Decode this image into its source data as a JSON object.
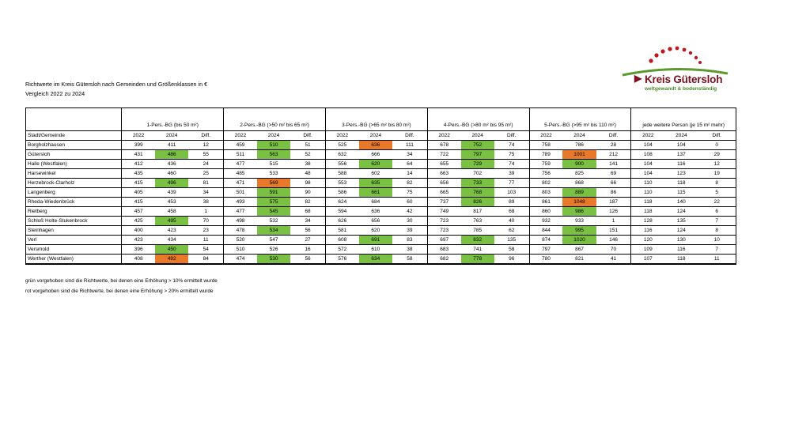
{
  "doc": {
    "title_line1": "Richtwerte im Kreis Gütersloh nach Gemeinden und Größenklassen in €",
    "title_line2": "Vergleich 2022 zu 2024"
  },
  "logo": {
    "name": "Kreis Gütersloh",
    "tagline": "weltgewandt & bodenständig",
    "colors": {
      "dots": "#c0151f",
      "arc": "#5a9a2e",
      "text": "#7a1020"
    }
  },
  "table": {
    "groups": [
      "1-Pers.-BG (bis 50 m²)",
      "2-Pers.-BG (>50 m² bis 65 m²)",
      "3-Pers.-BG (>65 m² bis 80 m²)",
      "4-Pers.-BG (>80 m² bis 95 m²)",
      "5-Pers.-BG (>95 m² bis 110 m²)",
      "jede weitere Person (je 15 m² mehr)"
    ],
    "header": {
      "city": "Stadt/Gemeinde",
      "y1": "2022",
      "y2": "2024",
      "diff": "Diff."
    },
    "highlight_colors": {
      "green": "#7ac043",
      "red": "#e8782a"
    },
    "rows": [
      {
        "name": "Borgholzhausen",
        "cells": [
          {
            "v": "399"
          },
          {
            "v": "411"
          },
          {
            "v": "12"
          },
          {
            "v": "459"
          },
          {
            "v": "510",
            "h": "g"
          },
          {
            "v": "51"
          },
          {
            "v": "525"
          },
          {
            "v": "636",
            "h": "r"
          },
          {
            "v": "111"
          },
          {
            "v": "678"
          },
          {
            "v": "752",
            "h": "g"
          },
          {
            "v": "74"
          },
          {
            "v": "758"
          },
          {
            "v": "786"
          },
          {
            "v": "28"
          },
          {
            "v": "104"
          },
          {
            "v": "104"
          },
          {
            "v": "0"
          }
        ]
      },
      {
        "name": "Gütersloh",
        "cells": [
          {
            "v": "431"
          },
          {
            "v": "486",
            "h": "g"
          },
          {
            "v": "55"
          },
          {
            "v": "511"
          },
          {
            "v": "563",
            "h": "g"
          },
          {
            "v": "52"
          },
          {
            "v": "632"
          },
          {
            "v": "666"
          },
          {
            "v": "34"
          },
          {
            "v": "722"
          },
          {
            "v": "797",
            "h": "g"
          },
          {
            "v": "75"
          },
          {
            "v": "789"
          },
          {
            "v": "1001",
            "h": "r"
          },
          {
            "v": "212"
          },
          {
            "v": "108"
          },
          {
            "v": "137"
          },
          {
            "v": "29"
          }
        ]
      },
      {
        "name": "Halle (Westfalen)",
        "cells": [
          {
            "v": "412"
          },
          {
            "v": "436"
          },
          {
            "v": "24"
          },
          {
            "v": "477"
          },
          {
            "v": "515"
          },
          {
            "v": "38"
          },
          {
            "v": "556"
          },
          {
            "v": "620",
            "h": "g"
          },
          {
            "v": "64"
          },
          {
            "v": "655"
          },
          {
            "v": "729",
            "h": "g"
          },
          {
            "v": "74"
          },
          {
            "v": "759"
          },
          {
            "v": "900",
            "h": "g"
          },
          {
            "v": "141"
          },
          {
            "v": "104"
          },
          {
            "v": "116"
          },
          {
            "v": "12"
          }
        ]
      },
      {
        "name": "Harsewinkel",
        "cells": [
          {
            "v": "435"
          },
          {
            "v": "460"
          },
          {
            "v": "25"
          },
          {
            "v": "485"
          },
          {
            "v": "533"
          },
          {
            "v": "48"
          },
          {
            "v": "588"
          },
          {
            "v": "602"
          },
          {
            "v": "14"
          },
          {
            "v": "663"
          },
          {
            "v": "702"
          },
          {
            "v": "39"
          },
          {
            "v": "756"
          },
          {
            "v": "825"
          },
          {
            "v": "69"
          },
          {
            "v": "104"
          },
          {
            "v": "123"
          },
          {
            "v": "19"
          }
        ]
      },
      {
        "name": "Herzebrock-Clarholz",
        "cells": [
          {
            "v": "415"
          },
          {
            "v": "496",
            "h": "g"
          },
          {
            "v": "81"
          },
          {
            "v": "471"
          },
          {
            "v": "569",
            "h": "r"
          },
          {
            "v": "98"
          },
          {
            "v": "553"
          },
          {
            "v": "635",
            "h": "g"
          },
          {
            "v": "82"
          },
          {
            "v": "656"
          },
          {
            "v": "733",
            "h": "g"
          },
          {
            "v": "77"
          },
          {
            "v": "802"
          },
          {
            "v": "868"
          },
          {
            "v": "66"
          },
          {
            "v": "110"
          },
          {
            "v": "118"
          },
          {
            "v": "8"
          }
        ]
      },
      {
        "name": "Langenberg",
        "cells": [
          {
            "v": "405"
          },
          {
            "v": "439"
          },
          {
            "v": "34"
          },
          {
            "v": "501"
          },
          {
            "v": "591",
            "h": "g"
          },
          {
            "v": "90"
          },
          {
            "v": "586"
          },
          {
            "v": "661",
            "h": "g"
          },
          {
            "v": "75"
          },
          {
            "v": "665"
          },
          {
            "v": "768",
            "h": "g"
          },
          {
            "v": "103"
          },
          {
            "v": "803"
          },
          {
            "v": "889",
            "h": "g"
          },
          {
            "v": "86"
          },
          {
            "v": "110"
          },
          {
            "v": "115"
          },
          {
            "v": "5"
          }
        ]
      },
      {
        "name": "Rheda-Wiedenbrück",
        "cells": [
          {
            "v": "415"
          },
          {
            "v": "453"
          },
          {
            "v": "38"
          },
          {
            "v": "493"
          },
          {
            "v": "575",
            "h": "g"
          },
          {
            "v": "82"
          },
          {
            "v": "624"
          },
          {
            "v": "684"
          },
          {
            "v": "60"
          },
          {
            "v": "737"
          },
          {
            "v": "826",
            "h": "g"
          },
          {
            "v": "89"
          },
          {
            "v": "861"
          },
          {
            "v": "1048",
            "h": "r"
          },
          {
            "v": "187"
          },
          {
            "v": "118"
          },
          {
            "v": "140"
          },
          {
            "v": "22"
          }
        ]
      },
      {
        "name": "Rietberg",
        "cells": [
          {
            "v": "457"
          },
          {
            "v": "458"
          },
          {
            "v": "1"
          },
          {
            "v": "477"
          },
          {
            "v": "545",
            "h": "g"
          },
          {
            "v": "68"
          },
          {
            "v": "594"
          },
          {
            "v": "636"
          },
          {
            "v": "42"
          },
          {
            "v": "749"
          },
          {
            "v": "817"
          },
          {
            "v": "68"
          },
          {
            "v": "860"
          },
          {
            "v": "986",
            "h": "g"
          },
          {
            "v": "126"
          },
          {
            "v": "118"
          },
          {
            "v": "124"
          },
          {
            "v": "6"
          }
        ]
      },
      {
        "name": "Schloß Holte-Stukenbrock",
        "cells": [
          {
            "v": "425"
          },
          {
            "v": "495",
            "h": "g"
          },
          {
            "v": "70"
          },
          {
            "v": "498"
          },
          {
            "v": "532"
          },
          {
            "v": "34"
          },
          {
            "v": "626"
          },
          {
            "v": "656"
          },
          {
            "v": "30"
          },
          {
            "v": "723"
          },
          {
            "v": "763"
          },
          {
            "v": "40"
          },
          {
            "v": "932"
          },
          {
            "v": "933"
          },
          {
            "v": "1"
          },
          {
            "v": "128"
          },
          {
            "v": "135"
          },
          {
            "v": "7"
          }
        ]
      },
      {
        "name": "Steinhagen",
        "cells": [
          {
            "v": "400"
          },
          {
            "v": "423"
          },
          {
            "v": "23"
          },
          {
            "v": "478"
          },
          {
            "v": "534",
            "h": "g"
          },
          {
            "v": "56"
          },
          {
            "v": "581"
          },
          {
            "v": "620"
          },
          {
            "v": "39"
          },
          {
            "v": "723"
          },
          {
            "v": "785"
          },
          {
            "v": "62"
          },
          {
            "v": "844"
          },
          {
            "v": "995",
            "h": "g"
          },
          {
            "v": "151"
          },
          {
            "v": "116"
          },
          {
            "v": "124"
          },
          {
            "v": "8"
          }
        ]
      },
      {
        "name": "Verl",
        "cells": [
          {
            "v": "423"
          },
          {
            "v": "434"
          },
          {
            "v": "11"
          },
          {
            "v": "520"
          },
          {
            "v": "547"
          },
          {
            "v": "27"
          },
          {
            "v": "608"
          },
          {
            "v": "691",
            "h": "g"
          },
          {
            "v": "83"
          },
          {
            "v": "697"
          },
          {
            "v": "832",
            "h": "g"
          },
          {
            "v": "135"
          },
          {
            "v": "874"
          },
          {
            "v": "1020",
            "h": "g"
          },
          {
            "v": "146"
          },
          {
            "v": "120"
          },
          {
            "v": "130"
          },
          {
            "v": "10"
          }
        ]
      },
      {
        "name": "Versmold",
        "cells": [
          {
            "v": "396"
          },
          {
            "v": "450",
            "h": "g"
          },
          {
            "v": "54"
          },
          {
            "v": "510"
          },
          {
            "v": "526"
          },
          {
            "v": "16"
          },
          {
            "v": "572"
          },
          {
            "v": "610"
          },
          {
            "v": "38"
          },
          {
            "v": "683"
          },
          {
            "v": "741"
          },
          {
            "v": "58"
          },
          {
            "v": "797"
          },
          {
            "v": "867"
          },
          {
            "v": "70"
          },
          {
            "v": "109"
          },
          {
            "v": "116"
          },
          {
            "v": "7"
          }
        ]
      },
      {
        "name": "Werther (Westfalen)",
        "cells": [
          {
            "v": "408"
          },
          {
            "v": "492",
            "h": "r"
          },
          {
            "v": "84"
          },
          {
            "v": "474"
          },
          {
            "v": "530",
            "h": "g"
          },
          {
            "v": "56"
          },
          {
            "v": "576"
          },
          {
            "v": "634",
            "h": "g"
          },
          {
            "v": "58"
          },
          {
            "v": "682"
          },
          {
            "v": "778",
            "h": "g"
          },
          {
            "v": "96"
          },
          {
            "v": "780"
          },
          {
            "v": "821"
          },
          {
            "v": "41"
          },
          {
            "v": "107"
          },
          {
            "v": "118"
          },
          {
            "v": "11"
          }
        ]
      }
    ]
  },
  "notes": {
    "green": "grün vorgehoben sind die Richtwerte, bei denen eine Erhöhung > 10% ermittelt wurde",
    "red": "rot vorgehoben sind die Richtwerte, bei denen eine Erhöhung > 20% ermittelt wurde"
  }
}
